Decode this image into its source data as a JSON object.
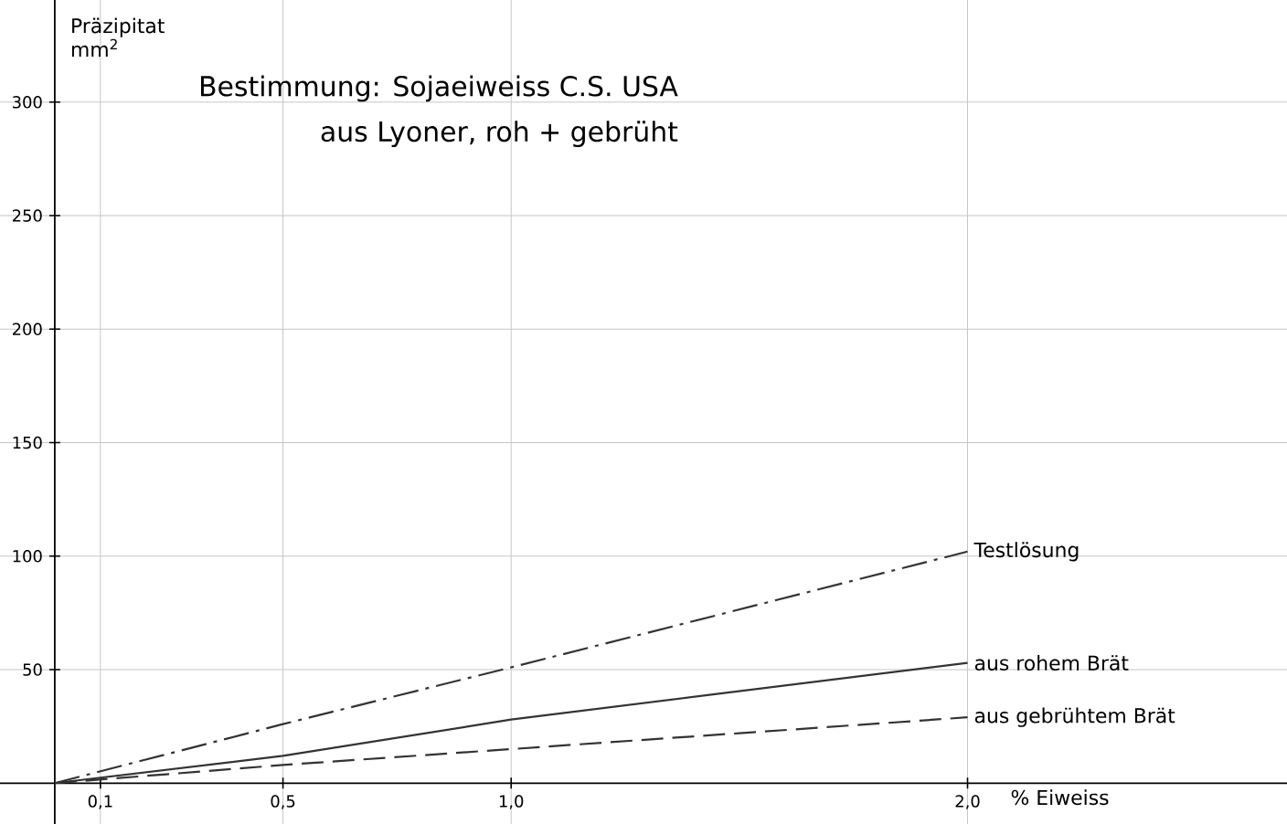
{
  "chart_data": {
    "type": "line",
    "title": "Bestimmung: Sojaeiweiss C.S. USA",
    "subtitle": "aus Lyoner, roh + gebrüht",
    "xlabel": "% Eiweiss",
    "ylabel": "Präzipitat mm$^{2}$",
    "series": [
      {
        "name": "Testlösung",
        "color": "#333333",
        "line_style": "dashdot",
        "x": [
          0,
          0.5,
          1.0,
          2.0
        ],
        "values": [
          0,
          26,
          51,
          102
        ]
      },
      {
        "name": "aus rohem Brät",
        "color": "#333333",
        "line_style": "solid",
        "x": [
          0,
          0.5,
          1.0,
          2.0
        ],
        "values": [
          0,
          12,
          28,
          53
        ]
      },
      {
        "name": "aus gebrühtem Brät",
        "color": "#333333",
        "line_style": "dashed",
        "x": [
          0,
          0.5,
          1.0,
          1.5,
          2.0
        ],
        "values": [
          0,
          8,
          15,
          22,
          29
        ]
      }
    ],
    "xlim": [
      -0.12,
      2.7
    ],
    "ylim": [
      -18,
      345
    ],
    "xticks": [
      {
        "value": 0.1,
        "label": "0,1"
      },
      {
        "value": 0.5,
        "label": "0,5"
      },
      {
        "value": 1.0,
        "label": "1,0"
      },
      {
        "value": 2.0,
        "label": "2,0"
      }
    ],
    "yticks": [
      50,
      100,
      150,
      200,
      250,
      300
    ],
    "grid": true,
    "marker": "none"
  }
}
